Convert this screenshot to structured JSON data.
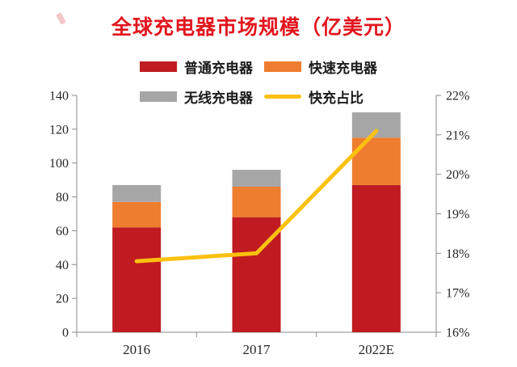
{
  "title": {
    "text": "全球充电器市场规模（亿美元）",
    "color": "#e2151e"
  },
  "legend": {
    "items": [
      {
        "label": "普通充电器",
        "color": "#c01b21",
        "shape": "rect"
      },
      {
        "label": "快速充电器",
        "color": "#ee7d2f",
        "shape": "rect"
      },
      {
        "label": "无线充电器",
        "color": "#a7a6a6",
        "shape": "rect"
      },
      {
        "label": "快充占比",
        "color": "#fcc110",
        "shape": "line"
      }
    ]
  },
  "chart_data": {
    "type": "bar",
    "subtype": "stacked-bar-with-line",
    "title": "全球充电器市场规模（亿美元）",
    "categories": [
      "2016",
      "2017",
      "2022E"
    ],
    "series": [
      {
        "name": "普通充电器",
        "type": "bar",
        "color": "#c01b21",
        "values": [
          62,
          68,
          87
        ]
      },
      {
        "name": "快速充电器",
        "type": "bar",
        "color": "#ee7d2f",
        "values": [
          15,
          18,
          28
        ]
      },
      {
        "name": "无线充电器",
        "type": "bar",
        "color": "#a7a6a6",
        "values": [
          10,
          10,
          15
        ]
      },
      {
        "name": "快充占比",
        "type": "line",
        "axis": "right",
        "color": "#fcc110",
        "values": [
          17.8,
          18.0,
          21.1
        ]
      }
    ],
    "stacked_totals": [
      87,
      96,
      130
    ],
    "left_axis": {
      "min": 0,
      "max": 140,
      "step": 20,
      "suffix": ""
    },
    "right_axis": {
      "min": 16,
      "max": 22,
      "step": 1,
      "suffix": "%"
    },
    "grid": false,
    "legend_position": "top",
    "axis_line_color": "#8a8a8a"
  }
}
